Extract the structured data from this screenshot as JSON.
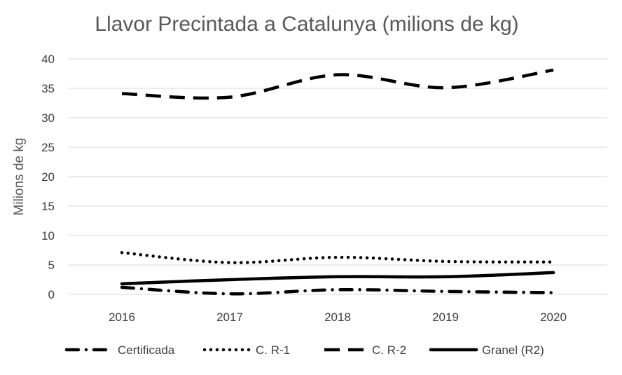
{
  "chart_data": {
    "type": "line",
    "title": "Llavor Precintada a Catalunya (milions de kg)",
    "xlabel": "",
    "ylabel": "Milions de kg",
    "categories": [
      "2016",
      "2017",
      "2018",
      "2019",
      "2020"
    ],
    "ylim": [
      0,
      40
    ],
    "yticks": [
      0,
      5,
      10,
      15,
      20,
      25,
      30,
      35,
      40
    ],
    "grid": true,
    "legend_position": "bottom",
    "series": [
      {
        "name": "Certificada",
        "values": [
          1.2,
          0.1,
          0.8,
          0.5,
          0.3
        ],
        "style": "dash-dot",
        "color": "#000000"
      },
      {
        "name": "C. R-1",
        "values": [
          7.1,
          5.4,
          6.3,
          5.6,
          5.5
        ],
        "style": "dot",
        "color": "#000000"
      },
      {
        "name": "C. R-2",
        "values": [
          34.1,
          33.5,
          37.3,
          35.1,
          38.1
        ],
        "style": "dash",
        "color": "#000000"
      },
      {
        "name": "Granel (R2)",
        "values": [
          1.8,
          2.5,
          3.0,
          3.0,
          3.7
        ],
        "style": "solid",
        "color": "#000000"
      }
    ]
  }
}
